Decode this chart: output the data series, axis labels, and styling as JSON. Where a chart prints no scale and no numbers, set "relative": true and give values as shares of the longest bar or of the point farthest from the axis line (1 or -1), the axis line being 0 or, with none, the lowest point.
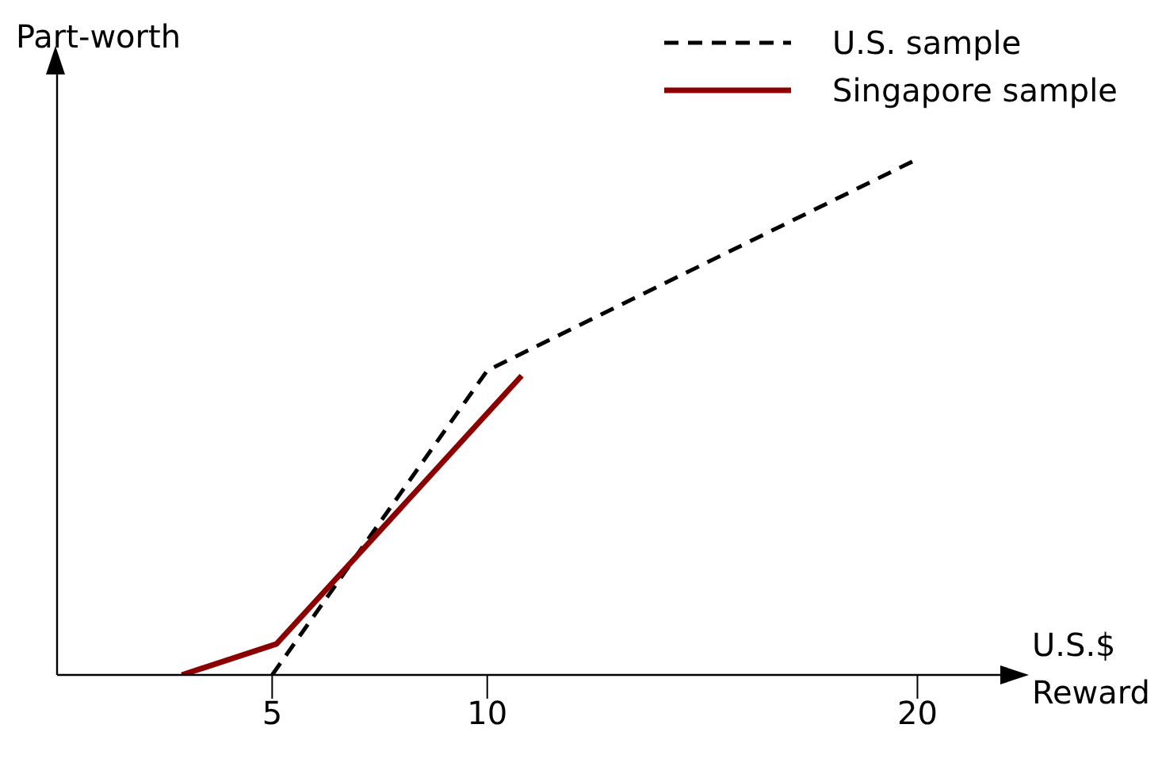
{
  "chart_data": {
    "type": "line",
    "xlabel": "U.S.$ Reward",
    "ylabel": "Part-worth",
    "relative": true,
    "xlim": [
      0,
      22
    ],
    "xticks": [
      5,
      10,
      20
    ],
    "legend": "top right",
    "grid": false,
    "marker": "none",
    "series": [
      {
        "name": "U.S. sample",
        "color": "#000000",
        "line_style": "dashed",
        "x": [
          5,
          10,
          20
        ],
        "values": [
          0,
          0.59,
          1
        ]
      },
      {
        "name": "Singapore sample",
        "color": "#8b0000",
        "line_style": "solid",
        "x": [
          2.9,
          5.1,
          10.8
        ],
        "values": [
          0,
          0.06,
          0.58
        ]
      }
    ]
  }
}
